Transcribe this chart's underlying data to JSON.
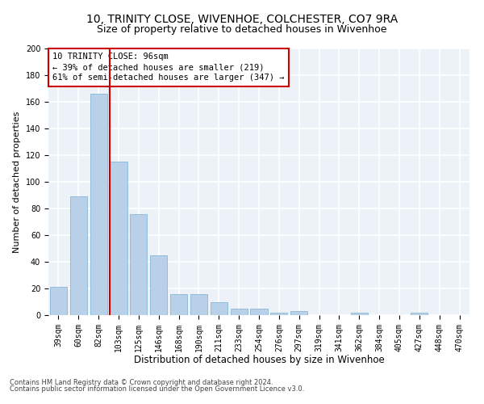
{
  "title": "10, TRINITY CLOSE, WIVENHOE, COLCHESTER, CO7 9RA",
  "subtitle": "Size of property relative to detached houses in Wivenhoe",
  "xlabel": "Distribution of detached houses by size in Wivenhoe",
  "ylabel": "Number of detached properties",
  "categories": [
    "39sqm",
    "60sqm",
    "82sqm",
    "103sqm",
    "125sqm",
    "146sqm",
    "168sqm",
    "190sqm",
    "211sqm",
    "233sqm",
    "254sqm",
    "276sqm",
    "297sqm",
    "319sqm",
    "341sqm",
    "362sqm",
    "384sqm",
    "405sqm",
    "427sqm",
    "448sqm",
    "470sqm"
  ],
  "values": [
    21,
    89,
    166,
    115,
    76,
    45,
    16,
    16,
    10,
    5,
    5,
    2,
    3,
    0,
    0,
    2,
    0,
    0,
    2,
    0,
    0
  ],
  "bar_color": "#b8d0e8",
  "bar_edge_color": "#7aafd4",
  "red_line_x": 2.57,
  "property_label": "10 TRINITY CLOSE: 96sqm",
  "annotation_line1": "← 39% of detached houses are smaller (219)",
  "annotation_line2": "61% of semi-detached houses are larger (347) →",
  "annotation_box_color": "#ffffff",
  "annotation_box_edge": "#cc0000",
  "vline_color": "#cc0000",
  "footer1": "Contains HM Land Registry data © Crown copyright and database right 2024.",
  "footer2": "Contains public sector information licensed under the Open Government Licence v3.0.",
  "ylim": [
    0,
    200
  ],
  "yticks": [
    0,
    20,
    40,
    60,
    80,
    100,
    120,
    140,
    160,
    180,
    200
  ],
  "background_color": "#edf2f9",
  "grid_color": "#ffffff",
  "title_fontsize": 10,
  "subtitle_fontsize": 9,
  "ylabel_fontsize": 8,
  "xlabel_fontsize": 8.5,
  "tick_fontsize": 7,
  "annot_fontsize": 7.5,
  "footer_fontsize": 6
}
